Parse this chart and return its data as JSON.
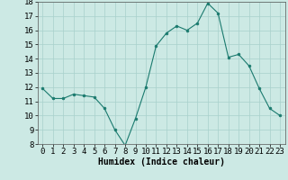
{
  "x": [
    0,
    1,
    2,
    3,
    4,
    5,
    6,
    7,
    8,
    9,
    10,
    11,
    12,
    13,
    14,
    15,
    16,
    17,
    18,
    19,
    20,
    21,
    22,
    23
  ],
  "y": [
    11.9,
    11.2,
    11.2,
    11.5,
    11.4,
    11.3,
    10.5,
    9.0,
    7.9,
    9.8,
    12.0,
    14.9,
    15.8,
    16.3,
    16.0,
    16.5,
    17.9,
    17.2,
    14.1,
    14.3,
    13.5,
    11.9,
    10.5,
    10.0
  ],
  "line_color": "#1a7a6e",
  "marker_color": "#1a7a6e",
  "bg_color": "#cce9e4",
  "grid_color": "#a8d0cb",
  "xlabel": "Humidex (Indice chaleur)",
  "ylim": [
    8,
    18
  ],
  "xlim_min": -0.5,
  "xlim_max": 23.5,
  "yticks": [
    8,
    9,
    10,
    11,
    12,
    13,
    14,
    15,
    16,
    17,
    18
  ],
  "xticks": [
    0,
    1,
    2,
    3,
    4,
    5,
    6,
    7,
    8,
    9,
    10,
    11,
    12,
    13,
    14,
    15,
    16,
    17,
    18,
    19,
    20,
    21,
    22,
    23
  ],
  "xlabel_fontsize": 7,
  "tick_fontsize": 6.5
}
